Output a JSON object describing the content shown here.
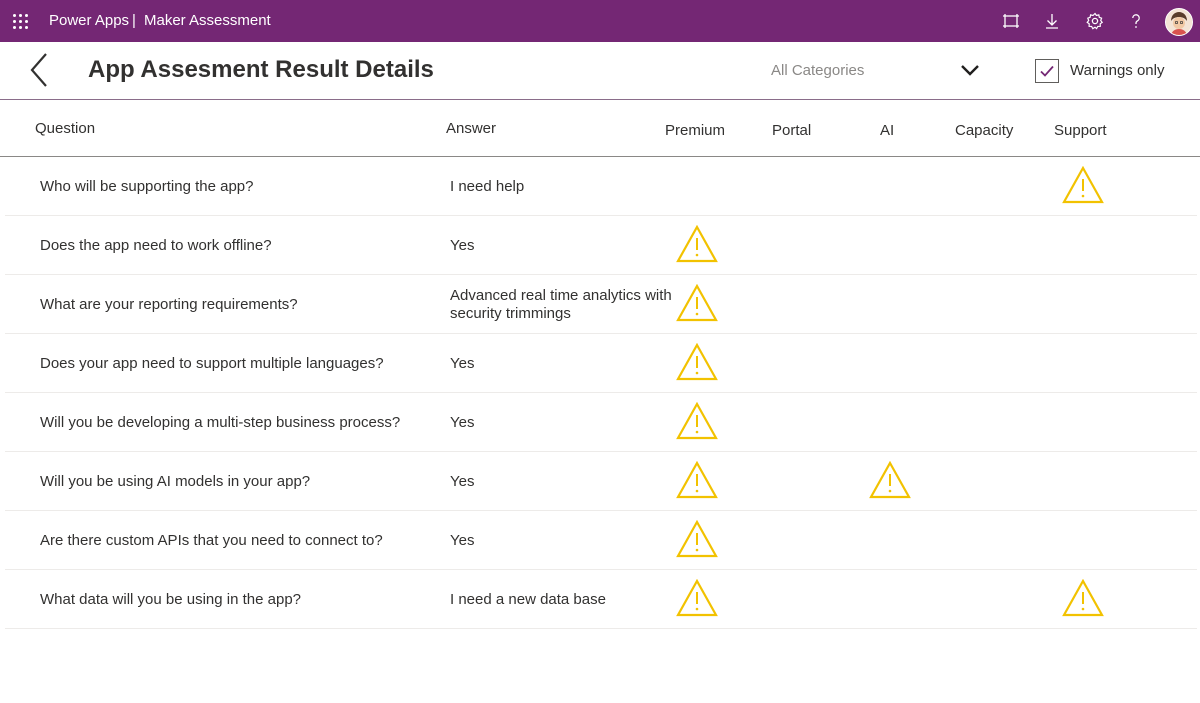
{
  "appbar": {
    "app_name": "Power Apps",
    "separator": "|",
    "app_title": "Maker Assessment",
    "color": "#742774",
    "icons": [
      "waffle-icon",
      "fit-screen-icon",
      "download-icon",
      "gear-icon",
      "help-icon",
      "avatar"
    ]
  },
  "header": {
    "title": "App Assesment Result Details",
    "category_select": {
      "value": "All Categories"
    },
    "warnings_only": {
      "label": "Warnings only",
      "checked": true
    }
  },
  "columns": {
    "question": "Question",
    "answer": "Answer",
    "premium": "Premium",
    "portal": "Portal",
    "ai": "AI",
    "capacity": "Capacity",
    "support": "Support"
  },
  "rows": [
    {
      "question": "Who will be supporting the app?",
      "answer": "I need help",
      "warnings": [
        "support"
      ]
    },
    {
      "question": "Does the app need to work offline?",
      "answer": "Yes",
      "warnings": [
        "premium"
      ]
    },
    {
      "question": "What are your reporting requirements?",
      "answer": "Advanced real time analytics with security trimmings",
      "warnings": [
        "premium"
      ]
    },
    {
      "question": "Does your app need to support multiple languages?",
      "answer": "Yes",
      "warnings": [
        "premium"
      ]
    },
    {
      "question": "Will you be developing a multi-step business process?",
      "answer": "Yes",
      "warnings": [
        "premium"
      ]
    },
    {
      "question": "Will you be using AI models in your app?",
      "answer": "Yes",
      "warnings": [
        "premium",
        "ai"
      ]
    },
    {
      "question": "Are there custom APIs that you need to connect to?",
      "answer": "Yes",
      "warnings": [
        "premium"
      ]
    },
    {
      "question": "What data will you be using in the app?",
      "answer": "I need a new data base",
      "warnings": [
        "premium",
        "support"
      ]
    }
  ],
  "colors": {
    "warning": "#F2C200",
    "accent": "#742774"
  }
}
